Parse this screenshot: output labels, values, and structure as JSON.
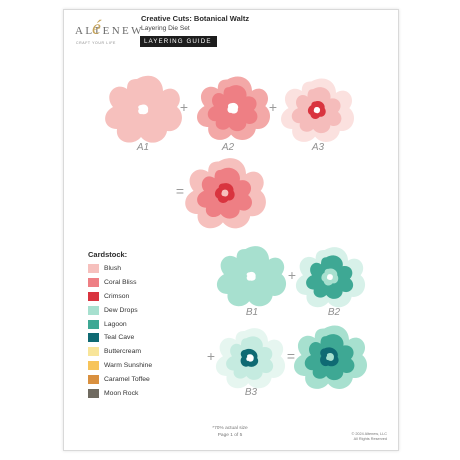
{
  "brand": {
    "wordmark": "ALTENEW",
    "mark": "é",
    "tagline": "CRAFT YOUR LIFE"
  },
  "header": {
    "title": "Creative Cuts: Botanical Waltz",
    "subtitle": "Layering Die Set",
    "badge": "LAYERING GUIDE"
  },
  "steps": {
    "a1": "A1",
    "a2": "A2",
    "a3": "A3",
    "b1": "B1",
    "b2": "B2",
    "b3": "B3"
  },
  "operators": {
    "plus": "+",
    "equals": "="
  },
  "cardstock": {
    "title": "Cardstock:",
    "items": [
      {
        "label": "Blush",
        "color": "#f6c0bd"
      },
      {
        "label": "Coral Bliss",
        "color": "#ee7f84"
      },
      {
        "label": "Crimson",
        "color": "#d9343f"
      },
      {
        "label": "Dew Drops",
        "color": "#a7e0cf"
      },
      {
        "label": "Lagoon",
        "color": "#3ea894"
      },
      {
        "label": "Teal Cave",
        "color": "#0f6a73"
      },
      {
        "label": "Buttercream",
        "color": "#f8e59a"
      },
      {
        "label": "Warm Sunshine",
        "color": "#f7c45a"
      },
      {
        "label": "Caramel Toffee",
        "color": "#d9903f"
      },
      {
        "label": "Moon Rock",
        "color": "#6f6a60"
      }
    ]
  },
  "colors": {
    "blush": "#f6c0bd",
    "coral": "#ee7f84",
    "crimson": "#d9343f",
    "dew": "#a7e0cf",
    "dew_light": "#d7f1e9",
    "lagoon": "#3ea894",
    "teal_cave": "#0f6a73"
  },
  "footer": {
    "scale": "*70% actual size",
    "page": "Page 1 of 5",
    "copyright": "© 2024 Altenew, LLC",
    "rights": "All Rights Reserved"
  }
}
